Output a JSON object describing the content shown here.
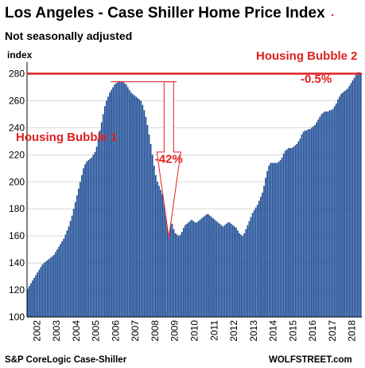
{
  "chart_data": {
    "type": "bar",
    "title": "Los Angeles - Case Shiller Home Price Index",
    "subtitle": "Not seasonally adjusted",
    "ylabel": "index",
    "ylim": [
      100,
      285
    ],
    "yticks": [
      100,
      120,
      140,
      160,
      180,
      200,
      220,
      240,
      260,
      280
    ],
    "xlim": [
      2002.0,
      2019.0
    ],
    "xtick_labels": [
      "2002",
      "2003",
      "2004",
      "2005",
      "2006",
      "2007",
      "2008",
      "2009",
      "2010",
      "2011",
      "2012",
      "2013",
      "2014",
      "2015",
      "2016",
      "2017",
      "2018"
    ],
    "series": [
      {
        "frequency": "monthly",
        "start": "2002-01",
        "color": "#1f4e96",
        "values": [
          121,
          123,
          125,
          127,
          129,
          131,
          133,
          135,
          137,
          139,
          140,
          141,
          142,
          143,
          144,
          145,
          146,
          148,
          150,
          152,
          154,
          156,
          158,
          161,
          164,
          167,
          171,
          175,
          180,
          185,
          190,
          195,
          200,
          205,
          210,
          213,
          215,
          216,
          217,
          218,
          220,
          222,
          226,
          232,
          238,
          244,
          250,
          256,
          260,
          263,
          266,
          268,
          270,
          272,
          273,
          274,
          274,
          274,
          274,
          273,
          272,
          270,
          268,
          266,
          265,
          264,
          263,
          262,
          261,
          260,
          257,
          253,
          248,
          242,
          235,
          228,
          220,
          212,
          205,
          200,
          197,
          194,
          191,
          188,
          185,
          181,
          177,
          173,
          169,
          165,
          162,
          161,
          160,
          161,
          163,
          166,
          168,
          169,
          170,
          171,
          172,
          171,
          170,
          170,
          171,
          172,
          173,
          174,
          175,
          176,
          176,
          175,
          174,
          173,
          172,
          171,
          170,
          169,
          168,
          167,
          168,
          169,
          170,
          170,
          169,
          168,
          167,
          166,
          164,
          162,
          161,
          160,
          162,
          165,
          168,
          171,
          174,
          177,
          179,
          181,
          183,
          186,
          189,
          192,
          197,
          203,
          208,
          212,
          214,
          214,
          214,
          214,
          214,
          215,
          216,
          218,
          221,
          223,
          224,
          225,
          225,
          225,
          226,
          227,
          228,
          230,
          232,
          235,
          237,
          238,
          238,
          239,
          239,
          240,
          241,
          242,
          244,
          246,
          248,
          250,
          251,
          252,
          252,
          252,
          253,
          253,
          254,
          256,
          258,
          261,
          263,
          265,
          266,
          267,
          268,
          269,
          271,
          273,
          275,
          277,
          279,
          281,
          281,
          280
        ]
      }
    ],
    "reference_line": {
      "value": 280,
      "color": "#e02020"
    },
    "peak_marker": {
      "from": 274,
      "to": 160,
      "label": "-42%"
    },
    "annotations": [
      {
        "text": "Housing Bubble 1",
        "color": "#e02020"
      },
      {
        "text": "Housing Bubble 2",
        "color": "#e02020"
      },
      {
        "text": "-0.5%",
        "color": "#e02020"
      }
    ],
    "source": "S&P CoreLogic Case-Shiller",
    "watermark": "WOLFSTREET.com"
  }
}
